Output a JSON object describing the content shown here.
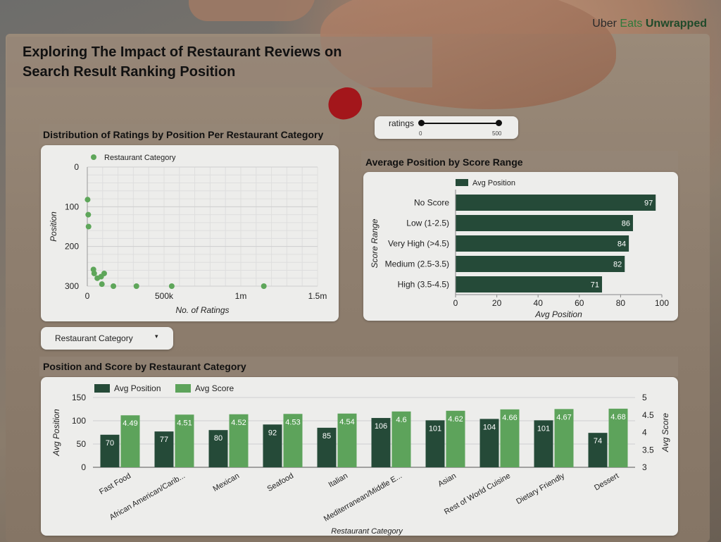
{
  "brand": {
    "uber": "Uber",
    "eats": "Eats",
    "unwrapped": "Unwrapped"
  },
  "title_line1": "Exploring The Impact of Restaurant Reviews on",
  "title_line2": "Search Result Ranking Position",
  "colors": {
    "dark_green": "#254a38",
    "light_green": "#5da35b",
    "scatter": "#5ea65a",
    "card": "#ededeb"
  },
  "slider": {
    "label": "ratings",
    "min_label": "0",
    "max_label": "500",
    "min": 0,
    "max": 500
  },
  "dropdown": {
    "label": "Restaurant Category",
    "icon": "caret-down-icon"
  },
  "chart_data": [
    {
      "type": "scatter",
      "title": "Distribution of Ratings by Position Per Restaurant Category",
      "legend": "Restaurant Category",
      "xlabel": "No. of Ratings",
      "ylabel": "Position",
      "xlim": [
        0,
        1500000
      ],
      "ylim": [
        0,
        300
      ],
      "y_reversed": true,
      "xticks": [
        "0",
        "500k",
        "1m",
        "1.5m"
      ],
      "xtick_values": [
        0,
        500000,
        1000000,
        1500000
      ],
      "yticks": [
        "0",
        "100",
        "200",
        "300"
      ],
      "ytick_values": [
        0,
        100,
        200,
        300
      ],
      "points": [
        {
          "x": 2000,
          "y": 82
        },
        {
          "x": 6000,
          "y": 120
        },
        {
          "x": 8000,
          "y": 150
        },
        {
          "x": 40000,
          "y": 258
        },
        {
          "x": 45000,
          "y": 268
        },
        {
          "x": 65000,
          "y": 280
        },
        {
          "x": 90000,
          "y": 276
        },
        {
          "x": 110000,
          "y": 268
        },
        {
          "x": 95000,
          "y": 295
        },
        {
          "x": 170000,
          "y": 300
        },
        {
          "x": 320000,
          "y": 300
        },
        {
          "x": 550000,
          "y": 300
        },
        {
          "x": 1150000,
          "y": 300
        }
      ]
    },
    {
      "type": "bar",
      "orientation": "horizontal",
      "title": "Average Position by Score Range",
      "legend": "Avg Position",
      "xlabel": "Avg Position",
      "ylabel": "Score Range",
      "xlim": [
        0,
        100
      ],
      "xticks": [
        "0",
        "20",
        "40",
        "60",
        "80",
        "100"
      ],
      "categories": [
        "No Score",
        "Low (1-2.5)",
        "Very High (>4.5)",
        "Medium (2.5-3.5)",
        "High (3.5-4.5)"
      ],
      "values": [
        97,
        86,
        84,
        82,
        71
      ]
    },
    {
      "type": "bar",
      "title": "Position and Score by Restaurant Category",
      "xlabel": "Restaurant Category",
      "ylabel": "Avg Position",
      "y2label": "Avg Score",
      "ylim": [
        0,
        150
      ],
      "y2lim": [
        3,
        5
      ],
      "yticks": [
        "0",
        "50",
        "100",
        "150"
      ],
      "y2ticks": [
        "3",
        "3.5",
        "4",
        "4.5",
        "5"
      ],
      "categories": [
        "Fast Food",
        "African American/Carib...",
        "Mexican",
        "Seafood",
        "Italian",
        "Mediterranean/Middle E...",
        "Asian",
        "Rest of World Cuisine",
        "Dietary Friendly",
        "Dessert"
      ],
      "series": [
        {
          "name": "Avg Position",
          "axis": "left",
          "values": [
            70,
            77,
            80,
            92,
            85,
            106,
            101,
            104,
            101,
            74
          ],
          "labels": [
            "70",
            "77",
            "80",
            "92",
            "85",
            "106",
            "101",
            "104",
            "101",
            "74"
          ]
        },
        {
          "name": "Avg Score",
          "axis": "right",
          "values": [
            4.49,
            4.51,
            4.52,
            4.53,
            4.54,
            4.6,
            4.62,
            4.66,
            4.67,
            4.68
          ],
          "labels": [
            "4.49",
            "4.51",
            "4.52",
            "4.53",
            "4.54",
            "4.6",
            "4.62",
            "4.66",
            "4.67",
            "4.68"
          ]
        }
      ]
    }
  ]
}
